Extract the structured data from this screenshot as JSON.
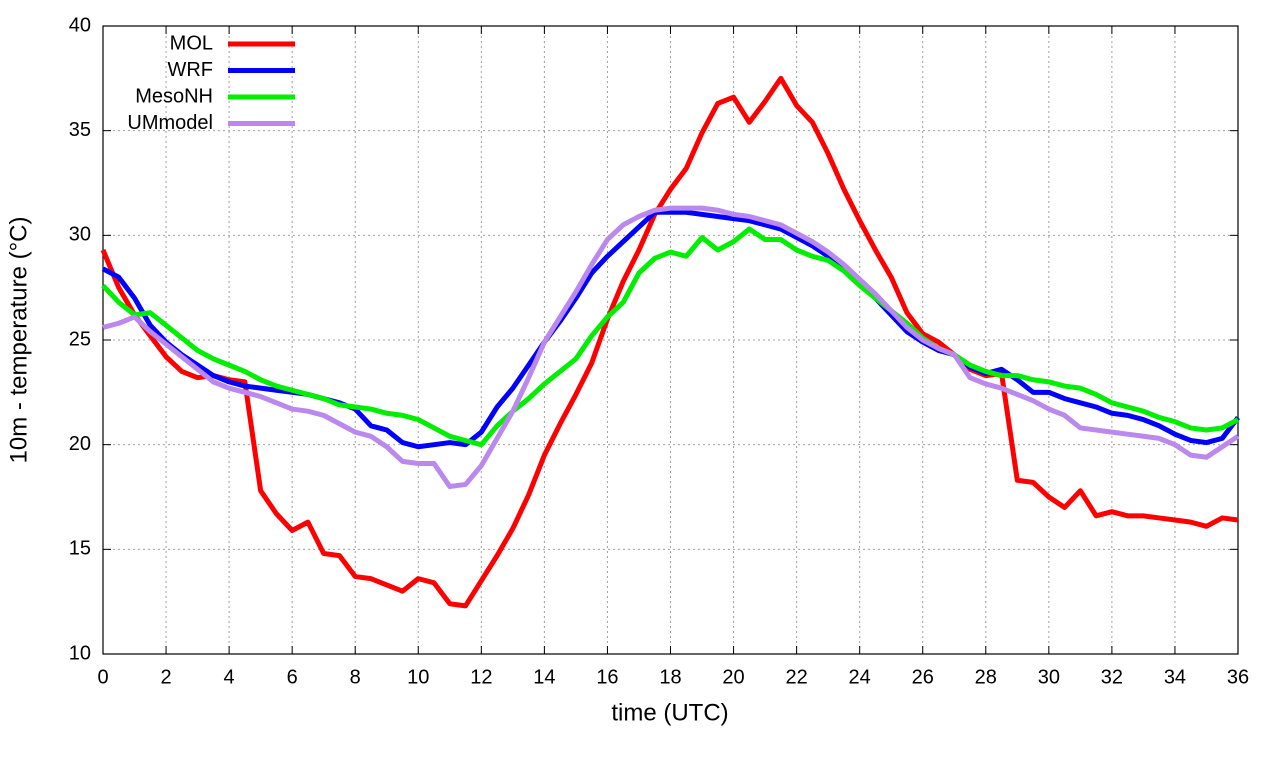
{
  "chart_data": {
    "type": "line",
    "x_label": "time (UTC)",
    "y_label": "10m - temperature (°C)",
    "x": [
      0,
      0.5,
      1,
      1.5,
      2,
      2.5,
      3,
      3.5,
      4,
      4.5,
      5,
      5.5,
      6,
      6.5,
      7,
      7.5,
      8,
      8.5,
      9,
      9.5,
      10,
      10.5,
      11,
      11.5,
      12,
      12.5,
      13,
      13.5,
      14,
      14.5,
      15,
      15.5,
      16,
      16.5,
      17,
      17.5,
      18,
      18.5,
      19,
      19.5,
      20,
      20.5,
      21,
      21.5,
      22,
      22.5,
      23,
      23.5,
      24,
      24.5,
      25,
      25.5,
      26,
      26.5,
      27,
      27.5,
      28,
      28.5,
      29,
      29.5,
      30,
      30.5,
      31,
      31.5,
      32,
      32.5,
      33,
      33.5,
      34,
      34.5,
      35,
      35.5,
      36
    ],
    "series": [
      {
        "name": "MOL",
        "color": "#ff0000",
        "values": [
          29.3,
          27.5,
          26.2,
          25.2,
          24.2,
          23.5,
          23.2,
          23.3,
          23.1,
          23.0,
          17.8,
          16.7,
          15.9,
          16.3,
          14.8,
          14.7,
          13.7,
          13.6,
          13.3,
          13.0,
          13.6,
          13.4,
          12.4,
          12.3,
          13.5,
          14.7,
          16.0,
          17.6,
          19.5,
          21.0,
          22.4,
          23.9,
          26.0,
          27.8,
          29.3,
          31.0,
          32.2,
          33.2,
          34.9,
          36.3,
          36.6,
          35.4,
          36.4,
          37.5,
          36.2,
          35.4,
          33.9,
          32.2,
          30.7,
          29.3,
          28.0,
          26.3,
          25.3,
          24.9,
          24.3,
          23.6,
          23.3,
          23.4,
          18.3,
          18.2,
          17.5,
          17.0,
          17.8,
          16.6,
          16.8,
          16.6,
          16.6,
          16.5,
          16.4,
          16.3,
          16.1,
          16.5,
          16.4
        ]
      },
      {
        "name": "WRF",
        "color": "#0000ff",
        "values": [
          28.4,
          28.0,
          27.0,
          25.7,
          24.9,
          24.3,
          23.8,
          23.3,
          23.0,
          22.8,
          22.7,
          22.6,
          22.5,
          22.4,
          22.2,
          22.0,
          21.7,
          20.9,
          20.7,
          20.1,
          19.9,
          20.0,
          20.1,
          20.0,
          20.6,
          21.8,
          22.7,
          23.8,
          24.9,
          25.9,
          27.0,
          28.2,
          29.0,
          29.7,
          30.4,
          31.1,
          31.1,
          31.1,
          31.0,
          30.9,
          30.8,
          30.7,
          30.5,
          30.3,
          29.9,
          29.5,
          29.0,
          28.4,
          27.7,
          27.0,
          26.2,
          25.4,
          24.9,
          24.5,
          24.3,
          23.7,
          23.4,
          23.6,
          23.1,
          22.5,
          22.5,
          22.2,
          22.0,
          21.8,
          21.5,
          21.4,
          21.2,
          20.9,
          20.5,
          20.2,
          20.1,
          20.3,
          21.3
        ]
      },
      {
        "name": "MesoNH",
        "color": "#00ee00",
        "values": [
          27.6,
          26.8,
          26.2,
          26.3,
          25.7,
          25.1,
          24.5,
          24.1,
          23.8,
          23.5,
          23.1,
          22.8,
          22.6,
          22.4,
          22.2,
          21.9,
          21.8,
          21.7,
          21.5,
          21.4,
          21.2,
          20.8,
          20.4,
          20.2,
          20.0,
          20.9,
          21.6,
          22.2,
          22.9,
          23.5,
          24.1,
          25.2,
          26.1,
          26.8,
          28.2,
          28.9,
          29.2,
          29.0,
          29.9,
          29.3,
          29.7,
          30.3,
          29.8,
          29.8,
          29.3,
          29.0,
          28.8,
          28.3,
          27.6,
          27.0,
          26.4,
          25.8,
          25.1,
          24.6,
          24.3,
          23.8,
          23.5,
          23.3,
          23.3,
          23.1,
          23.0,
          22.8,
          22.7,
          22.4,
          22.0,
          21.8,
          21.6,
          21.3,
          21.1,
          20.8,
          20.7,
          20.8,
          21.2
        ]
      },
      {
        "name": "UMmodel",
        "color": "#bb88ee",
        "values": [
          25.6,
          25.8,
          26.1,
          25.4,
          24.8,
          24.2,
          23.6,
          23.0,
          22.7,
          22.5,
          22.3,
          22.0,
          21.7,
          21.6,
          21.4,
          21.0,
          20.6,
          20.4,
          19.9,
          19.2,
          19.1,
          19.1,
          18.0,
          18.1,
          19.0,
          20.3,
          21.6,
          23.2,
          24.9,
          26.1,
          27.3,
          28.6,
          29.8,
          30.5,
          30.9,
          31.2,
          31.3,
          31.3,
          31.3,
          31.2,
          31.0,
          30.9,
          30.7,
          30.5,
          30.1,
          29.7,
          29.2,
          28.6,
          27.9,
          27.2,
          26.4,
          25.6,
          25.0,
          24.6,
          24.3,
          23.2,
          22.9,
          22.7,
          22.4,
          22.1,
          21.7,
          21.4,
          20.8,
          20.7,
          20.6,
          20.5,
          20.4,
          20.3,
          20.0,
          19.5,
          19.4,
          19.9,
          20.4
        ]
      }
    ],
    "xlim": [
      0,
      36
    ],
    "xticks": [
      0,
      2,
      4,
      6,
      8,
      10,
      12,
      14,
      16,
      18,
      20,
      22,
      24,
      26,
      28,
      30,
      32,
      34,
      36
    ],
    "ylim": [
      10,
      40
    ],
    "yticks": [
      10,
      15,
      20,
      25,
      30,
      35,
      40
    ],
    "grid": true,
    "legend": "upper-left"
  }
}
